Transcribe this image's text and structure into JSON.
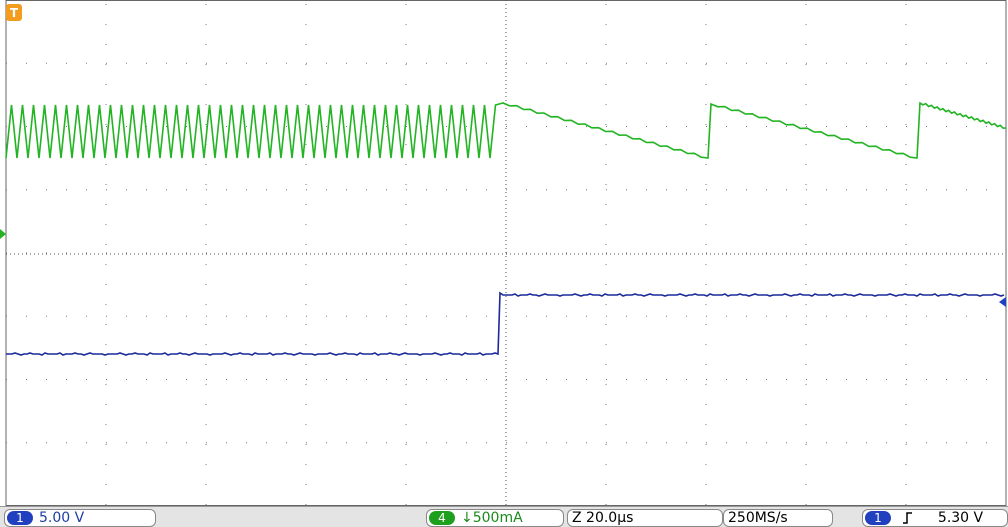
{
  "trigger_marker": "T",
  "status_bar": {
    "channel1": {
      "number": "1",
      "scale": "5.00 V"
    },
    "channel4": {
      "number": "4",
      "scale": "↓500mA"
    },
    "timebase": "Z 20.0µs",
    "sample_rate": "250MS/s",
    "trigger": {
      "source": "1",
      "level": "5.30 V"
    }
  }
}
